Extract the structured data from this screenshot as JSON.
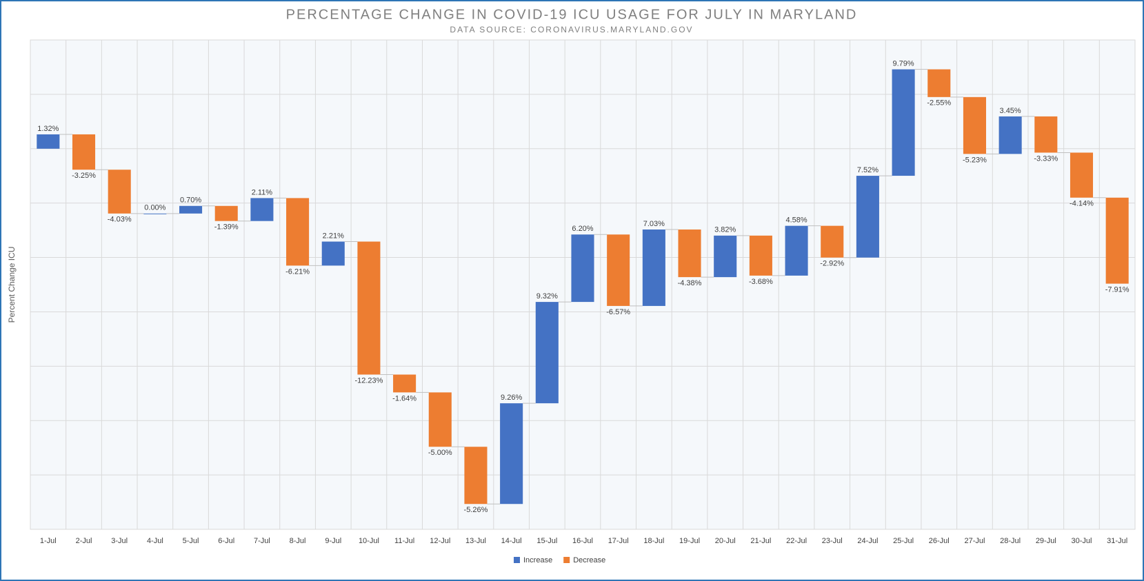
{
  "chart_data": {
    "type": "waterfall",
    "title": "PERCENTAGE CHANGE IN COVID-19 ICU USAGE FOR JULY IN MARYLAND",
    "subtitle": "DATA SOURCE: CORONAVIRUS.MARYLAND.GOV",
    "y_label": "Percent Change ICU",
    "categories": [
      "1-Jul",
      "2-Jul",
      "3-Jul",
      "4-Jul",
      "5-Jul",
      "6-Jul",
      "7-Jul",
      "8-Jul",
      "9-Jul",
      "10-Jul",
      "11-Jul",
      "12-Jul",
      "13-Jul",
      "14-Jul",
      "15-Jul",
      "16-Jul",
      "17-Jul",
      "18-Jul",
      "19-Jul",
      "20-Jul",
      "21-Jul",
      "22-Jul",
      "23-Jul",
      "24-Jul",
      "25-Jul",
      "26-Jul",
      "27-Jul",
      "28-Jul",
      "29-Jul",
      "30-Jul",
      "31-Jul"
    ],
    "values": [
      1.32,
      -3.25,
      -4.03,
      0.0,
      0.7,
      -1.39,
      2.11,
      -6.21,
      2.21,
      -12.23,
      -1.64,
      -5.0,
      -5.26,
      9.26,
      9.32,
      6.2,
      -6.57,
      7.03,
      -4.38,
      3.82,
      -3.68,
      4.58,
      -2.92,
      7.52,
      9.79,
      -2.55,
      -5.23,
      3.45,
      -3.33,
      -4.14,
      -7.91
    ],
    "value_labels": [
      "1.32%",
      "-3.25%",
      "-4.03%",
      "0.00%",
      "0.70%",
      "-1.39%",
      "2.11%",
      "-6.21%",
      "2.21%",
      "-12.23%",
      "-1.64%",
      "-5.00%",
      "-5.26%",
      "9.26%",
      "9.32%",
      "6.20%",
      "-6.57%",
      "7.03%",
      "-4.38%",
      "3.82%",
      "-3.68%",
      "4.58%",
      "-2.92%",
      "7.52%",
      "9.79%",
      "-2.55%",
      "-5.23%",
      "3.45%",
      "-3.33%",
      "-4.14%",
      "-7.91%"
    ],
    "series_styles": [
      {
        "name": "Increase",
        "color": "#4472c4"
      },
      {
        "name": "Decrease",
        "color": "#ed7d31"
      }
    ],
    "ylim": [
      -35,
      10
    ],
    "yticks": [
      -35,
      -30,
      -25,
      -20,
      -15,
      -10,
      -5,
      0,
      5,
      10
    ],
    "grid": true
  }
}
